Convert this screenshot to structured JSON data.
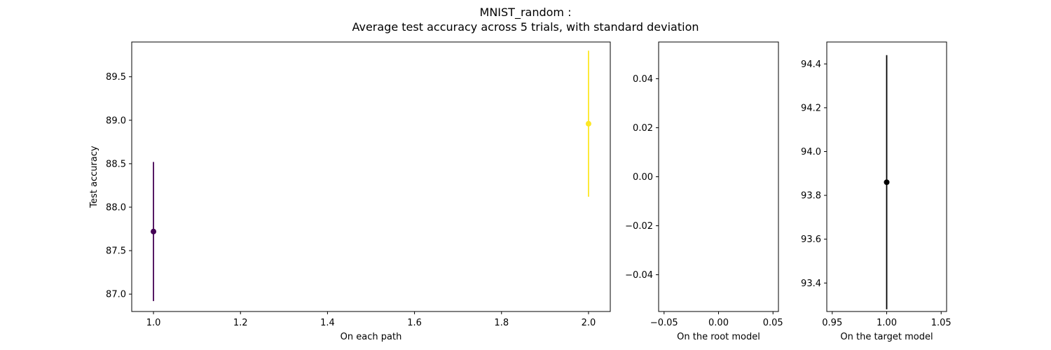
{
  "title": "MNIST_random :",
  "subtitle": "Average test accuracy across 5 trials, with standard deviation",
  "chart_data": [
    {
      "type": "scatter",
      "xlabel": "On each path",
      "ylabel": "Test accuracy",
      "xlim": [
        0.95,
        2.05
      ],
      "ylim": [
        86.8,
        89.9
      ],
      "xticks": [
        1.0,
        1.2,
        1.4,
        1.6,
        1.8,
        2.0
      ],
      "xtick_labels": [
        "1.0",
        "1.2",
        "1.4",
        "1.6",
        "1.8",
        "2.0"
      ],
      "yticks": [
        87.0,
        87.5,
        88.0,
        88.5,
        89.0,
        89.5
      ],
      "ytick_labels": [
        "87.0",
        "87.5",
        "88.0",
        "88.5",
        "89.0",
        "89.5"
      ],
      "points": [
        {
          "x": 1.0,
          "y": 87.72,
          "err": 0.8,
          "color": "#440154"
        },
        {
          "x": 2.0,
          "y": 88.96,
          "err": 0.84,
          "color": "#fde725"
        }
      ]
    },
    {
      "type": "scatter",
      "xlabel": "On the root model",
      "ylabel": "",
      "xlim": [
        -0.055,
        0.055
      ],
      "ylim": [
        -0.055,
        0.055
      ],
      "xticks": [
        -0.05,
        0.0,
        0.05
      ],
      "xtick_labels": [
        "−0.05",
        "0.00",
        "0.05"
      ],
      "yticks": [
        -0.04,
        -0.02,
        0.0,
        0.02,
        0.04
      ],
      "ytick_labels": [
        "−0.04",
        "−0.02",
        "0.00",
        "0.02",
        "0.04"
      ],
      "points": []
    },
    {
      "type": "scatter",
      "xlabel": "On the target model",
      "ylabel": "",
      "xlim": [
        0.945,
        1.055
      ],
      "ylim": [
        93.27,
        94.5
      ],
      "xticks": [
        0.95,
        1.0,
        1.05
      ],
      "xtick_labels": [
        "0.95",
        "1.00",
        "1.05"
      ],
      "yticks": [
        93.4,
        93.6,
        93.8,
        94.0,
        94.2,
        94.4
      ],
      "ytick_labels": [
        "93.4",
        "93.6",
        "93.8",
        "94.0",
        "94.2",
        "94.4"
      ],
      "points": [
        {
          "x": 1.0,
          "y": 93.86,
          "err": 0.58,
          "color": "#000000"
        }
      ]
    }
  ]
}
